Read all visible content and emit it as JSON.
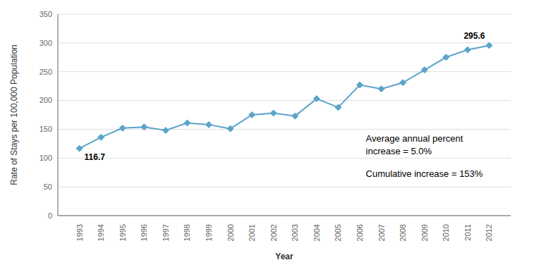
{
  "chart_data": {
    "type": "line",
    "x": [
      1993,
      1994,
      1995,
      1996,
      1997,
      1998,
      1999,
      2000,
      2001,
      2002,
      2003,
      2004,
      2005,
      2006,
      2007,
      2008,
      2009,
      2010,
      2011,
      2012
    ],
    "values": [
      116.7,
      136.0,
      152.0,
      154.0,
      148.0,
      161.0,
      158.0,
      151.0,
      175.0,
      178.0,
      173.0,
      203.0,
      188.0,
      227.0,
      220.0,
      231.0,
      253.0,
      275.0,
      288.0,
      295.6
    ],
    "color": "#5ba3c9",
    "marker": "diamond",
    "xlabel": "Year",
    "ylabel": "Rate of Stays per 100,000 Population",
    "xlim": [
      1992,
      2013
    ],
    "xticks": [
      1993,
      1994,
      1995,
      1996,
      1997,
      1998,
      1999,
      2000,
      2001,
      2002,
      2003,
      2004,
      2005,
      2006,
      2007,
      2008,
      2009,
      2010,
      2011,
      2012
    ],
    "ylim": [
      0,
      350
    ],
    "yticks": [
      0,
      50,
      100,
      150,
      200,
      250,
      300,
      350
    ],
    "grid": true,
    "annotations": [
      "116.7",
      "295.6",
      "Average annual percent\nincrease = 5.0%",
      "Cumulative increase = 153%"
    ]
  }
}
